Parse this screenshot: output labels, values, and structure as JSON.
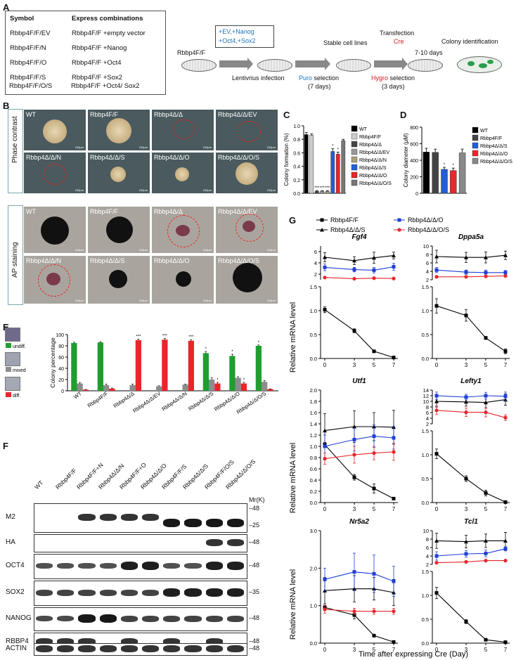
{
  "panels": {
    "A": "A",
    "B": "B",
    "C": "C",
    "D": "D",
    "E": "E",
    "F": "F",
    "G": "G"
  },
  "panel_a": {
    "table": {
      "header": [
        "Symbol",
        "Express combinations"
      ],
      "rows": [
        [
          "Rbbp4F/F/EV",
          "Rbbp4F/F +empty vector"
        ],
        [
          "Rbbp4F/F/N",
          "Rbbp4F/F +Nanog"
        ],
        [
          "Rbbp4F/F/O",
          "Rbbp4F/F +Oct4"
        ],
        [
          "Rbbp4F/F/S",
          "Rbbp4F/F +Sox2"
        ],
        [
          "Rbbp4F/F/O/S",
          "Rbbp4F/F +Oct4/ Sox2"
        ]
      ]
    },
    "schema": {
      "start": "Rbbp4F/F",
      "box_line1": "+EV,+Nanog",
      "box_line2": "+Oct4,+Sox2",
      "lenti": "Lentivrius infection",
      "stable": "Stable cell lines",
      "puro_word": "Puro",
      "puro_rest": " selection",
      "puro_days": "(7 days)",
      "transfection": "Transfection",
      "cre": "Cre",
      "hygro_word": "Hygro",
      "hygro_rest": " selection",
      "hygro_days": "(3 days)",
      "days": "7-10 days",
      "colony_id": "Colony identification"
    }
  },
  "panel_b": {
    "phase_label": "Phase contrast",
    "ap_label": "AP staining",
    "scale_bar": "100μm",
    "images": [
      "WT",
      "Rbbp4F/F",
      "Rbbp4Δ/Δ",
      "Rbbp4Δ/Δ/EV",
      "Rbbp4Δ/Δ/N",
      "Rbbp4Δ/Δ/S",
      "Rbbp4Δ/Δ/O",
      "Rbbp4Δ/Δ/O/S"
    ]
  },
  "chart_data": [
    {
      "panel": "C",
      "type": "bar",
      "ylabel": "Colony formation (%)",
      "ylim": [
        0,
        1.0
      ],
      "yticks": [
        "0.0",
        "0.2",
        "0.4",
        "0.6",
        "0.8",
        "1.0"
      ],
      "categories": [
        "WT",
        "Rbbp4F/F",
        "Rbbp4Δ/Δ",
        "Rbbp4Δ/Δ/EV",
        "Rbbp4Δ/Δ/N",
        "Rbbp4Δ/Δ/S",
        "Rbbp4Δ/Δ/O",
        "Rbbp4Δ/Δ/O/S"
      ],
      "values": [
        0.87,
        0.86,
        0.03,
        0.03,
        0.03,
        0.62,
        0.58,
        0.78
      ],
      "errors": [
        0.03,
        0.02,
        0.01,
        0.01,
        0.01,
        0.04,
        0.03,
        0.02
      ],
      "stars": [
        "",
        "",
        "***",
        "***",
        "***",
        "*",
        "*",
        ""
      ],
      "colors": [
        "#000000",
        "#cccccc",
        "#444444",
        "#999999",
        "#a89f7a",
        "#1f5fd6",
        "#e8262b",
        "#777777"
      ]
    },
    {
      "panel": "D",
      "type": "bar",
      "ylabel": "Colony diameter (μM)",
      "ylim": [
        0,
        800
      ],
      "yticks": [
        "0",
        "200",
        "400",
        "600",
        "800"
      ],
      "categories": [
        "WT",
        "Rbbp4F/F",
        "Rbbp4Δ/Δ/S",
        "Rbbp4Δ/Δ/O",
        "Rbbp4Δ/Δ/O/S"
      ],
      "values": [
        500,
        495,
        290,
        275,
        490
      ],
      "errors": [
        45,
        40,
        25,
        30,
        45
      ],
      "stars": [
        "",
        "",
        "*",
        "*",
        ""
      ],
      "colors": [
        "#000000",
        "#444444",
        "#1f5fd6",
        "#e8262b",
        "#888888"
      ]
    },
    {
      "panel": "E",
      "type": "bar",
      "ylabel": "Colony percentage",
      "ylim": [
        0,
        100
      ],
      "yticks": [
        "0",
        "20",
        "40",
        "60",
        "80",
        "100"
      ],
      "categories": [
        "WT",
        "Rbbp4F/F",
        "Rbbp4Δ/Δ",
        "Rbbp4Δ/Δ/EV",
        "Rbbp4Δ/Δ/N",
        "Rbbp4Δ/Δ/S",
        "Rbbp4Δ/Δ/O",
        "Rbbp4Δ/Δ/O/S"
      ],
      "legend": [
        "undiff.",
        "mixed",
        "diff."
      ],
      "series": [
        {
          "name": "undiff.",
          "color": "#1f9e2f",
          "values": [
            85,
            86,
            0,
            0,
            0,
            67,
            62,
            80
          ],
          "errors": [
            1.5,
            1,
            0,
            0,
            0,
            3,
            3,
            1.5
          ],
          "stars": [
            "",
            "",
            "",
            "",
            "",
            "*",
            "*",
            "*"
          ]
        },
        {
          "name": "mixed",
          "color": "#8c8c8c",
          "values": [
            13,
            10,
            10,
            8,
            11,
            20,
            23,
            16
          ],
          "errors": [
            1.5,
            2,
            2,
            1,
            1,
            3,
            2,
            2
          ],
          "stars": [
            "",
            "",
            "",
            "",
            "",
            "",
            "",
            ""
          ]
        },
        {
          "name": "diff.",
          "color": "#e8262b",
          "values": [
            2,
            4,
            90,
            91,
            89,
            13,
            13,
            3
          ],
          "errors": [
            0.5,
            1,
            2,
            2,
            2,
            2,
            2,
            0.5
          ],
          "stars": [
            "",
            "",
            "***",
            "***",
            "***",
            "*",
            "*",
            ""
          ]
        }
      ]
    },
    {
      "panel": "G",
      "type": "line",
      "xlabel": "Time after expressing Cre (Day)",
      "ylabel": "Relative mRNA level",
      "x": [
        0,
        3,
        5,
        7
      ],
      "legend": [
        {
          "name": "Rbbp4F/F",
          "color": "#000000",
          "marker": "square"
        },
        {
          "name": "Rbbp4Δ/Δ/S",
          "color": "#000000",
          "marker": "triangle"
        },
        {
          "name": "Rbbp4Δ/Δ/O",
          "color": "#1f3fd6",
          "marker": "square"
        },
        {
          "name": "Rbbp4Δ/Δ/O/S",
          "color": "#e8262b",
          "marker": "circle"
        }
      ],
      "subplots": [
        {
          "gene": "Fgf4",
          "upper": {
            "ylim": [
              1,
              7
            ],
            "yticks": [
              "2",
              "4",
              "6"
            ]
          },
          "lower": {
            "ylim": [
              0,
              1.5
            ],
            "yticks": [
              "0.0",
              "0.5",
              "1.0",
              "1.5"
            ]
          },
          "series": [
            {
              "name": "Rbbp4F/F",
              "values": [
                1.02,
                0.58,
                0.15,
                0.02
              ],
              "errors": [
                0.06,
                0.04,
                0.02,
                0.01
              ]
            },
            {
              "name": "Rbbp4Δ/Δ/S",
              "values": [
                5.0,
                4.4,
                4.9,
                5.3
              ],
              "errors": [
                0.8,
                0.7,
                1.0,
                0.6
              ]
            },
            {
              "name": "Rbbp4Δ/Δ/O",
              "values": [
                3.2,
                2.8,
                2.7,
                3.3
              ],
              "errors": [
                0.6,
                0.4,
                0.5,
                0.6
              ]
            },
            {
              "name": "Rbbp4Δ/Δ/O/S",
              "values": [
                1.4,
                1.18,
                1.28,
                1.22
              ],
              "errors": [
                0.1,
                0.04,
                0.05,
                0.15
              ]
            }
          ]
        },
        {
          "gene": "Dppa5a",
          "upper": {
            "ylim": [
              2,
              10
            ],
            "yticks": [
              "2",
              "4",
              "6",
              "8",
              "10"
            ]
          },
          "lower": {
            "ylim": [
              0,
              1.5
            ],
            "yticks": [
              "0.0",
              "0.5",
              "1.0",
              "1.5"
            ]
          },
          "series": [
            {
              "name": "Rbbp4F/F",
              "values": [
                1.1,
                0.9,
                0.43,
                0.15
              ],
              "errors": [
                0.15,
                0.12,
                0.03,
                0.05
              ]
            },
            {
              "name": "Rbbp4Δ/Δ/S",
              "values": [
                7.5,
                7.3,
                7.3,
                7.8
              ],
              "errors": [
                1.5,
                1.2,
                1.3,
                1.0
              ]
            },
            {
              "name": "Rbbp4Δ/Δ/O",
              "values": [
                4.3,
                3.8,
                3.7,
                3.7
              ],
              "errors": [
                0.6,
                0.5,
                0.6,
                0.5
              ]
            },
            {
              "name": "Rbbp4Δ/Δ/O/S",
              "values": [
                2.7,
                2.7,
                2.8,
                2.9
              ],
              "errors": [
                0.3,
                0.2,
                0.2,
                0.2
              ]
            }
          ]
        },
        {
          "gene": "Utf1",
          "upper": null,
          "lower": {
            "ylim": [
              0,
              2.0
            ],
            "yticks": [
              "0.0",
              "0.2",
              "0.4",
              "0.6",
              "0.8",
              "1.0",
              "1.2",
              "1.4",
              "1.6",
              "1.8",
              "2.0"
            ]
          },
          "series": [
            {
              "name": "Rbbp4F/F",
              "values": [
                1.03,
                0.45,
                0.25,
                0.07
              ],
              "errors": [
                0.04,
                0.05,
                0.08,
                0.02
              ]
            },
            {
              "name": "Rbbp4Δ/Δ/S",
              "values": [
                1.28,
                1.35,
                1.35,
                1.34
              ],
              "errors": [
                0.3,
                0.28,
                0.25,
                0.3
              ]
            },
            {
              "name": "Rbbp4Δ/Δ/O",
              "values": [
                1.0,
                1.12,
                1.18,
                1.15
              ],
              "errors": [
                0.2,
                0.2,
                0.2,
                0.2
              ]
            },
            {
              "name": "Rbbp4Δ/Δ/O/S",
              "values": [
                0.78,
                0.85,
                0.88,
                0.9
              ],
              "errors": [
                0.1,
                0.15,
                0.12,
                0.15
              ]
            }
          ]
        },
        {
          "gene": "Lefty1",
          "upper": {
            "ylim": [
              2,
              14
            ],
            "yticks": [
              "2",
              "4",
              "6",
              "8",
              "10",
              "12",
              "14"
            ]
          },
          "lower": {
            "ylim": [
              0,
              1.5
            ],
            "yticks": [
              "0.0",
              "0.5",
              "1.0",
              "1.5"
            ]
          },
          "series": [
            {
              "name": "Rbbp4F/F",
              "values": [
                1.02,
                0.5,
                0.2,
                0.01
              ],
              "errors": [
                0.1,
                0.06,
                0.06,
                0.01
              ]
            },
            {
              "name": "Rbbp4Δ/Δ/S",
              "values": [
                10,
                9.8,
                9.6,
                10.6
              ],
              "errors": [
                2.0,
                1.5,
                2.0,
                2.0
              ]
            },
            {
              "name": "Rbbp4Δ/Δ/O",
              "values": [
                12.0,
                11.5,
                12.0,
                11.8
              ],
              "errors": [
                1.3,
                1.0,
                1.2,
                1.5
              ]
            },
            {
              "name": "Rbbp4Δ/Δ/O/S",
              "values": [
                6.8,
                6.1,
                6.1,
                4.2
              ],
              "errors": [
                1.5,
                1.5,
                1.6,
                1.0
              ]
            }
          ]
        },
        {
          "gene": "Nr5a2",
          "upper": null,
          "lower": {
            "ylim": [
              0,
              3.0
            ],
            "yticks": [
              "0.0",
              "1.0",
              "2.0",
              "3.0"
            ]
          },
          "series": [
            {
              "name": "Rbbp4F/F",
              "values": [
                0.95,
                0.75,
                0.2,
                0.03
              ],
              "errors": [
                0.06,
                0.1,
                0.03,
                0.01
              ]
            },
            {
              "name": "Rbbp4Δ/Δ/S",
              "values": [
                1.4,
                1.45,
                1.45,
                1.35
              ],
              "errors": [
                0.35,
                0.35,
                0.3,
                0.35
              ]
            },
            {
              "name": "Rbbp4Δ/Δ/O",
              "values": [
                1.7,
                1.9,
                1.85,
                1.65
              ],
              "errors": [
                0.3,
                0.5,
                0.5,
                0.4
              ]
            },
            {
              "name": "Rbbp4Δ/Δ/O/S",
              "values": [
                0.9,
                0.85,
                0.85,
                0.85
              ],
              "errors": [
                0.1,
                0.08,
                0.08,
                0.08
              ]
            }
          ]
        },
        {
          "gene": "Tcl1",
          "upper": {
            "ylim": [
              2,
              10
            ],
            "yticks": [
              "2",
              "4",
              "6",
              "8",
              "10"
            ]
          },
          "lower": {
            "ylim": [
              0,
              1.5
            ],
            "yticks": [
              "0.0",
              "0.5",
              "1.0",
              "1.5"
            ]
          },
          "series": [
            {
              "name": "Rbbp4F/F",
              "values": [
                1.05,
                0.45,
                0.07,
                0.02
              ],
              "errors": [
                0.12,
                0.04,
                0.01,
                0.01
              ]
            },
            {
              "name": "Rbbp4Δ/Δ/S",
              "values": [
                7.6,
                7.4,
                7.6,
                7.6
              ],
              "errors": [
                1.8,
                1.5,
                1.6,
                2.0
              ]
            },
            {
              "name": "Rbbp4Δ/Δ/O",
              "values": [
                4.0,
                4.5,
                4.6,
                5.7
              ],
              "errors": [
                1.0,
                0.8,
                0.8,
                0.5
              ]
            },
            {
              "name": "Rbbp4Δ/Δ/O/S",
              "values": [
                2.4,
                2.6,
                2.9,
                2.9
              ],
              "errors": [
                0.2,
                0.2,
                0.2,
                0.2
              ]
            }
          ]
        }
      ]
    }
  ],
  "panel_f": {
    "lanes": [
      "WT",
      "Rbbp4F/F",
      "Rbbp4F/F+N",
      "Rbbp4Δ/Δ/N",
      "Rbbp4F/F+O",
      "Rbbp4Δ/Δ/O",
      "Rbbp4F/F/S",
      "Rbbp4Δ/Δ/S",
      "Rbbp4F/F/O/S",
      "Rbbp4Δ/Δ/O/S"
    ],
    "mr_label": "Mr(K)",
    "blots": [
      {
        "name": "M2",
        "markers": [
          "48",
          "25"
        ]
      },
      {
        "name": "HA",
        "markers": [
          "48"
        ]
      },
      {
        "name": "OCT4",
        "markers": [
          "48"
        ]
      },
      {
        "name": "SOX2",
        "markers": [
          "35"
        ]
      },
      {
        "name": "NANOG",
        "markers": [
          "48"
        ]
      },
      {
        "name": "RBBP4",
        "markers": [
          "48"
        ]
      },
      {
        "name": "ACTIN",
        "markers": [
          "48"
        ]
      }
    ],
    "band_levels": {
      "M2": [
        0,
        0,
        1,
        1,
        1,
        1,
        1.4,
        1.4,
        1.4,
        1.4
      ],
      "HA": [
        0,
        0,
        0,
        0,
        0,
        0,
        0,
        0,
        1,
        1
      ],
      "OCT4": [
        0.6,
        0.6,
        0.6,
        0.6,
        1.3,
        1.3,
        0.6,
        0.6,
        1.3,
        1.3
      ],
      "SOX2": [
        0.8,
        0.8,
        0.8,
        0.8,
        0.8,
        0.8,
        1.3,
        1.3,
        1.3,
        1.3
      ],
      "NANOG": [
        0.7,
        0.7,
        1.4,
        1.4,
        0.8,
        0.8,
        0.8,
        0.8,
        0.8,
        0.8
      ],
      "RBBP4": [
        1,
        1,
        1,
        0,
        1,
        0,
        1,
        0,
        1,
        0
      ],
      "ACTIN": [
        1,
        1,
        1,
        1,
        1,
        1,
        1,
        1,
        1,
        1
      ]
    }
  }
}
